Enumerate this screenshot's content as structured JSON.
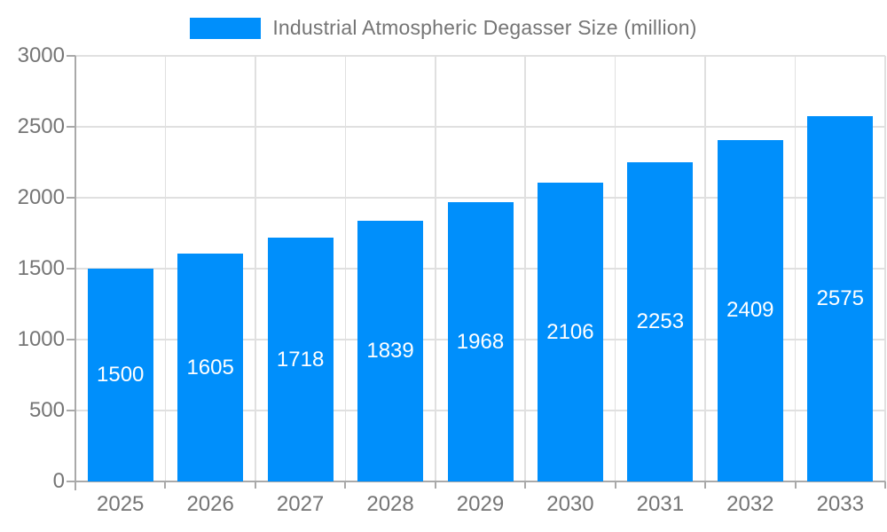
{
  "legend": {
    "series_label": "Industrial Atmospheric Degasser Size (million)"
  },
  "colors": {
    "bar": "#008FFB",
    "grid": "#e0e0e0",
    "axis": "#a9a9a9",
    "tick_text": "#757575",
    "bar_label_text": "#ffffff",
    "background": "#ffffff"
  },
  "chart_data": {
    "type": "bar",
    "title": "Industrial Atmospheric Degasser Size (million)",
    "categories": [
      "2025",
      "2026",
      "2027",
      "2028",
      "2029",
      "2030",
      "2031",
      "2032",
      "2033"
    ],
    "series": [
      {
        "name": "Industrial Atmospheric Degasser Size (million)",
        "values": [
          1500,
          1605,
          1718,
          1839,
          1968,
          2106,
          2253,
          2409,
          2575
        ]
      }
    ],
    "xlabel": "",
    "ylabel": "",
    "ylim": [
      0,
      3000
    ],
    "yticks": [
      0,
      500,
      1000,
      1500,
      2000,
      2500,
      3000
    ],
    "grid": true,
    "legend_position": "top",
    "value_labels": "inside-center"
  }
}
